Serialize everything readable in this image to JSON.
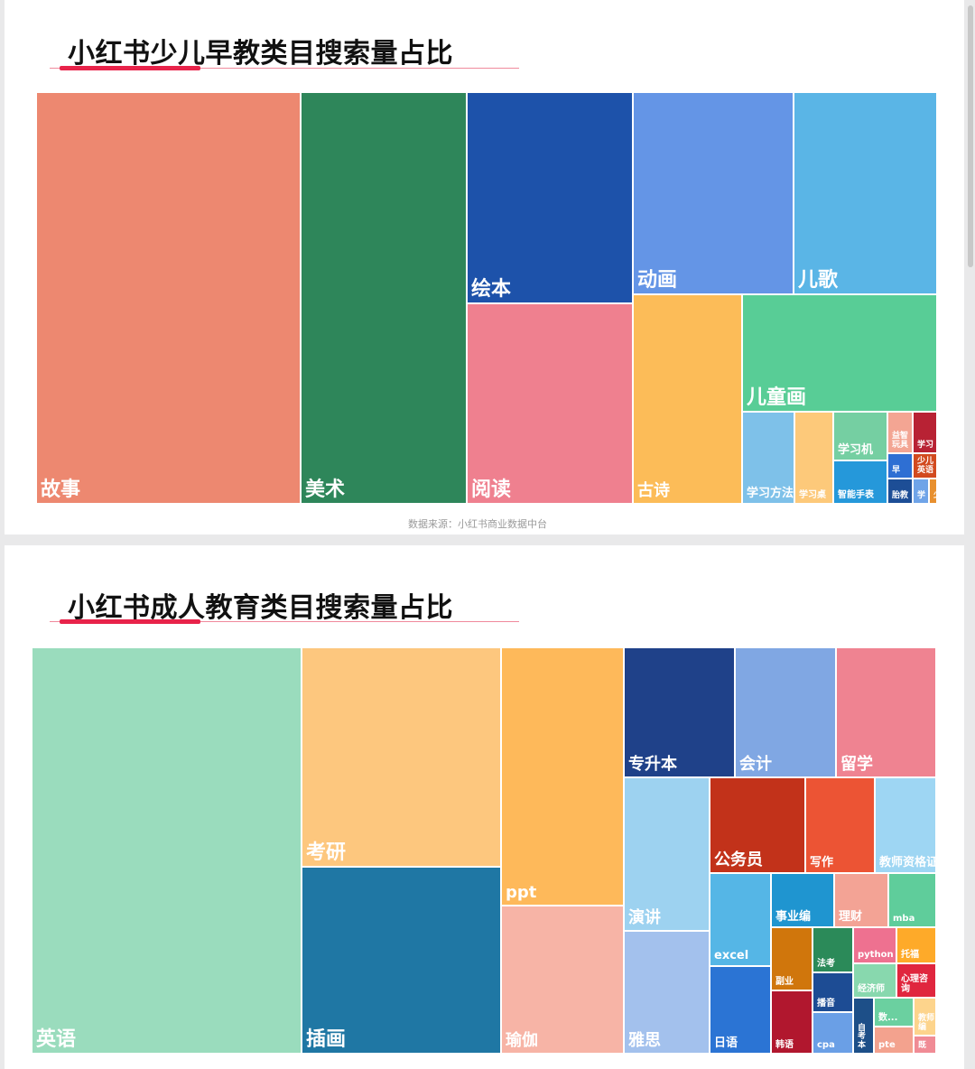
{
  "chart_data": [
    {
      "type": "treemap",
      "title": "小红书少儿早教类目搜索量占比",
      "source": "数据来源：小红书商业数据中台",
      "items": [
        {
          "label": "故事",
          "value": 1331,
          "color": "#ed8870"
        },
        {
          "label": "美术",
          "value": 836,
          "color": "#2e865a"
        },
        {
          "label": "绘本",
          "value": 431,
          "color": "#1d52aa"
        },
        {
          "label": "阅读",
          "value": 404,
          "color": "#ef808f"
        },
        {
          "label": "动画",
          "value": 403,
          "color": "#6495e6"
        },
        {
          "label": "儿歌",
          "value": 348,
          "color": "#5ab5e6"
        },
        {
          "label": "古诗",
          "value": 277,
          "color": "#fcbc58"
        },
        {
          "label": "儿童画",
          "value": 270,
          "color": "#58cd96"
        },
        {
          "label": "学习方法",
          "value": 58,
          "color": "#7ec1e9"
        },
        {
          "label": "学习桌",
          "value": 38,
          "color": "#fdc97a"
        },
        {
          "label": "学习机",
          "value": 24,
          "color": "#75cfa2"
        },
        {
          "label": "智能手表",
          "value": 26,
          "color": "#2598da"
        },
        {
          "label": "益智玩具",
          "value": 13,
          "color": "#f3a593"
        },
        {
          "label": "早",
          "value": 10,
          "color": "#2e6fd3"
        },
        {
          "label": "胎教",
          "value": 10,
          "color": "#1d4e96"
        },
        {
          "label": "学习",
          "value": 11,
          "color": "#b82234"
        },
        {
          "label": "少儿英语",
          "value": 7,
          "color": "#d24a1f"
        },
        {
          "label": "学",
          "value": 6,
          "color": "#6fa4e8"
        },
        {
          "label": "少",
          "value": 4,
          "color": "#e8902f"
        }
      ]
    },
    {
      "type": "treemap",
      "title": "小红书成人教育类目搜索量占比",
      "items": [
        {
          "label": "英语",
          "value": 1340,
          "color": "#9adcbd"
        },
        {
          "label": "考研",
          "value": 475,
          "color": "#fdc77e"
        },
        {
          "label": "插画",
          "value": 450,
          "color": "#1f77a4"
        },
        {
          "label": "ppt",
          "value": 534,
          "color": "#feb95a"
        },
        {
          "label": "瑜伽",
          "value": 300,
          "color": "#f7b4a6"
        },
        {
          "label": "专升本",
          "value": 162,
          "color": "#1f4189"
        },
        {
          "label": "会计",
          "value": 146,
          "color": "#80a7e3"
        },
        {
          "label": "留学",
          "value": 146,
          "color": "#ef8391"
        },
        {
          "label": "演讲",
          "value": 150,
          "color": "#9dd2f0"
        },
        {
          "label": "雅思",
          "value": 129,
          "color": "#a3c1ed"
        },
        {
          "label": "公务员",
          "value": 99,
          "color": "#c2321a"
        },
        {
          "label": "写作",
          "value": 76,
          "color": "#ec5434"
        },
        {
          "label": "教师资格证",
          "value": 66,
          "color": "#9ed6f3"
        },
        {
          "label": "excel",
          "value": 65,
          "color": "#55b6e6"
        },
        {
          "label": "日语",
          "value": 62,
          "color": "#2b74d4"
        },
        {
          "label": "事业编",
          "value": 40,
          "color": "#1f95d0"
        },
        {
          "label": "理财",
          "value": 35,
          "color": "#f3a395"
        },
        {
          "label": "mba",
          "value": 34,
          "color": "#5fcd9b"
        },
        {
          "label": "副业",
          "value": 27,
          "color": "#d0760c"
        },
        {
          "label": "韩语",
          "value": 27,
          "color": "#b1172e"
        },
        {
          "label": "法考",
          "value": 18,
          "color": "#2b8a59"
        },
        {
          "label": "播音",
          "value": 17,
          "color": "#1d4c94"
        },
        {
          "label": "cpa",
          "value": 17,
          "color": "#6a9fe6"
        },
        {
          "label": "python",
          "value": 15,
          "color": "#ee7190"
        },
        {
          "label": "托福",
          "value": 13,
          "color": "#feaa29"
        },
        {
          "label": "经济师",
          "value": 14,
          "color": "#88d8ae"
        },
        {
          "label": "心理咨询",
          "value": 14,
          "color": "#e0263e"
        },
        {
          "label": "自考本",
          "value": 13,
          "color": "#1d4f88"
        },
        {
          "label": "数...",
          "value": 10,
          "color": "#6bd0a0"
        },
        {
          "label": "教师编",
          "value": 7,
          "color": "#fdd48c"
        },
        {
          "label": "pte",
          "value": 7,
          "color": "#f3a28e"
        },
        {
          "label": "既",
          "value": 4,
          "color": "#f08b95"
        }
      ]
    }
  ]
}
